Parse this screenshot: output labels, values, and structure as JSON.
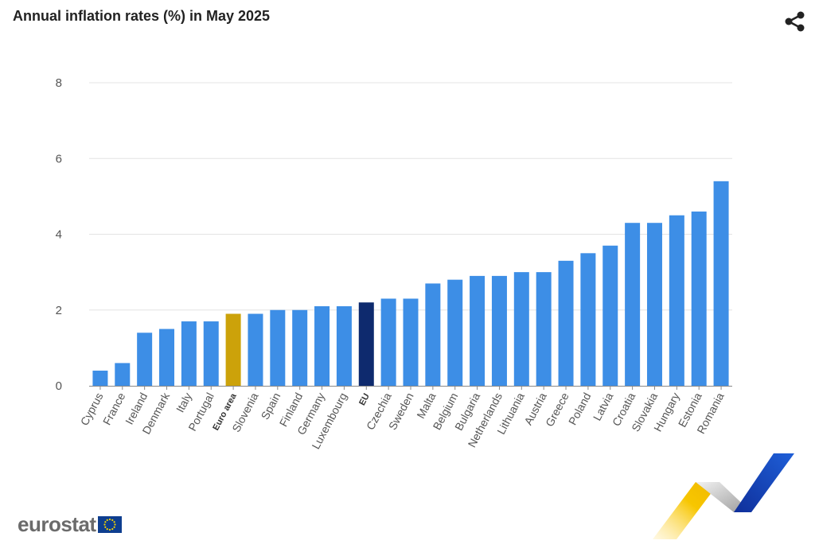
{
  "header": {
    "title": "Annual inflation rates (%) in May 2025"
  },
  "brand": {
    "name": "eurostat"
  },
  "icons": {
    "share": "share-icon",
    "flag": "eu-flag-icon",
    "logo": "eurostat-swoosh-icon"
  },
  "colors": {
    "default_bar": "#3d8ee6",
    "euro_area_bar": "#cca20a",
    "eu_bar": "#0e2a6e",
    "grid": "#e4e4e4",
    "axis": "#888888",
    "label": "#555555"
  },
  "chart_data": {
    "type": "bar",
    "title": "Annual inflation rates (%) in May 2025",
    "xlabel": "",
    "ylabel": "",
    "ylim": [
      0,
      8
    ],
    "yticks": [
      0,
      2,
      4,
      6,
      8
    ],
    "grid": true,
    "categories": [
      "Cyprus",
      "France",
      "Ireland",
      "Denmark",
      "Italy",
      "Portugal",
      "Euro area",
      "Slovenia",
      "Spain",
      "Finland",
      "Germany",
      "Luxembourg",
      "EU",
      "Czechia",
      "Sweden",
      "Malta",
      "Belgium",
      "Bulgaria",
      "Netherlands",
      "Lithuania",
      "Austria",
      "Greece",
      "Poland",
      "Latvia",
      "Croatia",
      "Slovakia",
      "Hungary",
      "Estonia",
      "Romania"
    ],
    "values": [
      0.4,
      0.6,
      1.4,
      1.5,
      1.7,
      1.7,
      1.9,
      1.9,
      2.0,
      2.0,
      2.1,
      2.1,
      2.2,
      2.3,
      2.3,
      2.7,
      2.8,
      2.9,
      2.9,
      3.0,
      3.0,
      3.3,
      3.5,
      3.7,
      4.3,
      4.3,
      4.5,
      4.6,
      5.4
    ],
    "highlight": {
      "Euro area": "euro_area_bar",
      "EU": "eu_bar"
    },
    "bold_labels": [
      "Euro area",
      "EU"
    ]
  }
}
